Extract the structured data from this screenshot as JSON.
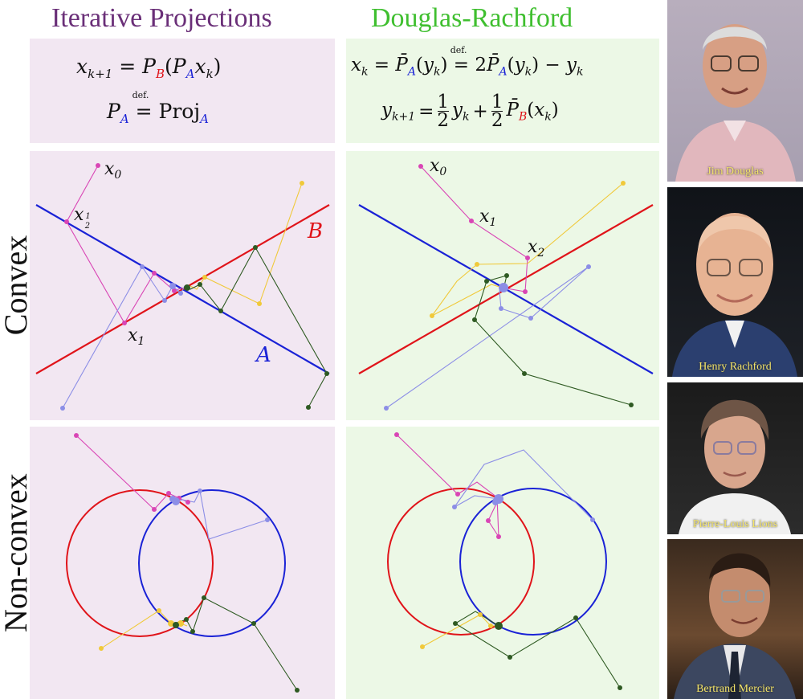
{
  "titles": {
    "left": "Iterative Projections",
    "right": "Douglas-Rachford"
  },
  "row_labels": {
    "convex": "Convex",
    "nonconvex": "Non-convex"
  },
  "formulas": {
    "ip_update": {
      "lhs": "x",
      "lhs_sub": "k+1",
      "rhs_pb": "P",
      "b": "B",
      "rhs_pa": "P",
      "a": "A",
      "x": "x",
      "k": "k"
    },
    "ip_def": {
      "p": "P",
      "a": "A",
      "def": "def.",
      "proj": "Proj"
    },
    "dr_line1": {
      "x": "x",
      "k": "k",
      "pbar": "P̄",
      "a": "A",
      "y": "y",
      "def": "def.",
      "two": "2",
      "minus": "−"
    },
    "dr_line2": {
      "y": "y",
      "k1": "k+1",
      "half_num": "1",
      "half_den": "2",
      "plus": "+",
      "b": "B",
      "x": "x",
      "k": "k"
    }
  },
  "annotations": {
    "x0": "x",
    "x0_sub": "0",
    "xhalf": "x",
    "xhalf_num": "1",
    "xhalf_den": "2",
    "x1": "x",
    "x1_sub": "1",
    "x2": "x",
    "x2_sub": "2",
    "set_a": "A",
    "set_b": "B"
  },
  "colors": {
    "set_a": "#1a22d6",
    "set_b": "#e0141a",
    "pink_path": "#d945b5",
    "lavender_path": "#8c8ee6",
    "yellow_path": "#f0c93a",
    "darkgreen_path": "#2e5a22",
    "title_left": "#6a2f78",
    "title_right": "#3fbf2f",
    "caption": "#f4e56a"
  },
  "portraits": [
    {
      "name": "Jim Douglas"
    },
    {
      "name": "Henry Rachford"
    },
    {
      "name": "Pierre-Louis Lions"
    },
    {
      "name": "Bertrand Mercier"
    }
  ]
}
